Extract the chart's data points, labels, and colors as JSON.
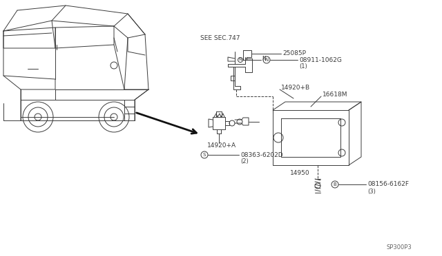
{
  "bg_color": "#ffffff",
  "line_color": "#3a3a3a",
  "text_color": "#3a3a3a",
  "fig_code": "SP300P3",
  "see_sec": "SEE SEC.747",
  "part1": "25085P",
  "part2_circle": "N",
  "part2": "08911-1062G",
  "part2_sub": "(1)",
  "part3": "14920+B",
  "part4": "16618M",
  "part5": "14920+A",
  "part6_circle": "S",
  "part6": "08363-6202D",
  "part6_sub": "(2)",
  "part7": "14950",
  "part8_circle": "B",
  "part8": "08156-6162F",
  "part8_sub": "(3)"
}
